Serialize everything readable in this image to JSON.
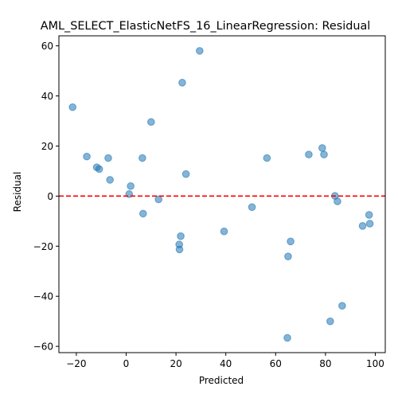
{
  "chart_data": {
    "type": "scatter",
    "title": "AML_SELECT_ElasticNetFS_16_LinearRegression: Residual",
    "xlabel": "Predicted",
    "ylabel": "Residual",
    "xlim": [
      -27,
      104
    ],
    "ylim": [
      -62.5,
      64
    ],
    "xticks": [
      -20,
      0,
      20,
      40,
      60,
      80,
      100
    ],
    "yticks": [
      -60,
      -40,
      -20,
      0,
      20,
      40,
      60
    ],
    "grid": false,
    "point_color": "#1f77b4",
    "reference_line": {
      "y": 0,
      "color": "#ff0000",
      "style": "dashed"
    },
    "points": [
      {
        "x": -21.5,
        "y": 35.5
      },
      {
        "x": -15.8,
        "y": 15.8
      },
      {
        "x": -11.8,
        "y": 11.5
      },
      {
        "x": -10.8,
        "y": 10.8
      },
      {
        "x": -7.2,
        "y": 15.2
      },
      {
        "x": -6.5,
        "y": 6.5
      },
      {
        "x": 1.2,
        "y": 0.8
      },
      {
        "x": 1.8,
        "y": 4.0
      },
      {
        "x": 6.5,
        "y": 15.2
      },
      {
        "x": 6.8,
        "y": -7.0
      },
      {
        "x": 10.0,
        "y": 29.6
      },
      {
        "x": 13.0,
        "y": -1.3
      },
      {
        "x": 21.3,
        "y": -19.3
      },
      {
        "x": 21.4,
        "y": -21.3
      },
      {
        "x": 21.9,
        "y": -16.0
      },
      {
        "x": 22.5,
        "y": 45.3
      },
      {
        "x": 24.0,
        "y": 8.8
      },
      {
        "x": 29.5,
        "y": 58.0
      },
      {
        "x": 39.3,
        "y": -14.1
      },
      {
        "x": 50.5,
        "y": -4.4
      },
      {
        "x": 56.5,
        "y": 15.2
      },
      {
        "x": 64.7,
        "y": -56.6
      },
      {
        "x": 65.0,
        "y": -24.1
      },
      {
        "x": 66.0,
        "y": -18.1
      },
      {
        "x": 73.3,
        "y": 16.6
      },
      {
        "x": 78.7,
        "y": 19.2
      },
      {
        "x": 79.4,
        "y": 16.6
      },
      {
        "x": 81.9,
        "y": -50.0
      },
      {
        "x": 83.8,
        "y": 0.1
      },
      {
        "x": 84.8,
        "y": -2.1
      },
      {
        "x": 86.7,
        "y": -43.8
      },
      {
        "x": 94.9,
        "y": -11.9
      },
      {
        "x": 97.5,
        "y": -7.5
      },
      {
        "x": 97.8,
        "y": -11.0
      }
    ]
  }
}
